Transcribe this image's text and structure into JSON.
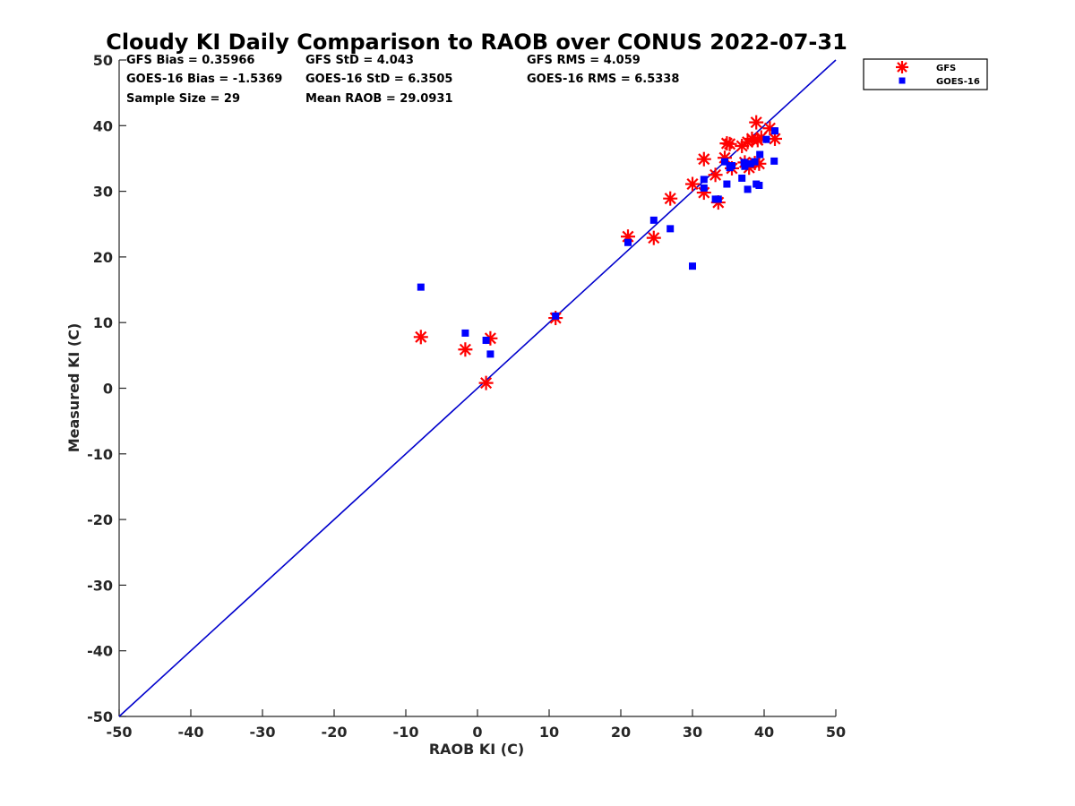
{
  "chart_data": {
    "type": "scatter",
    "title": "Cloudy KI Daily Comparison to RAOB over CONUS 2022-07-31",
    "xlabel": "RAOB KI (C)",
    "ylabel": "Measured KI (C)",
    "xlim": [
      -50,
      50
    ],
    "ylim": [
      -50,
      50
    ],
    "xticks": [
      "-50",
      "-40",
      "-30",
      "-20",
      "-10",
      "0",
      "10",
      "20",
      "30",
      "40",
      "50"
    ],
    "yticks": [
      "-50",
      "-40",
      "-30",
      "-20",
      "-10",
      "0",
      "10",
      "20",
      "30",
      "40",
      "50"
    ],
    "grid": false,
    "legend_position": "top-right",
    "reference_line": {
      "type": "one-to-one",
      "color": "#0000cc"
    },
    "stats": [
      [
        "GFS Bias = 0.35966",
        "GFS StD = 4.043",
        "GFS RMS = 4.059"
      ],
      [
        "GOES-16 Bias = -1.5369",
        "GOES-16 StD = 6.3505",
        "GOES-16 RMS = 6.5338"
      ],
      [
        "Sample Size = 29",
        "Mean RAOB = 29.0931",
        ""
      ]
    ],
    "series": [
      {
        "name": "GFS",
        "marker": "asterisk",
        "color": "#ff0000",
        "points": [
          [
            -7.9,
            7.8
          ],
          [
            -1.7,
            5.9
          ],
          [
            1.2,
            0.8
          ],
          [
            1.8,
            7.6
          ],
          [
            10.9,
            10.7
          ],
          [
            21.0,
            23.1
          ],
          [
            24.6,
            22.9
          ],
          [
            26.9,
            28.9
          ],
          [
            30.0,
            31.1
          ],
          [
            31.6,
            29.8
          ],
          [
            31.6,
            34.9
          ],
          [
            33.2,
            32.5
          ],
          [
            33.6,
            28.3
          ],
          [
            34.5,
            35.1
          ],
          [
            34.8,
            37.3
          ],
          [
            35.2,
            37.2
          ],
          [
            35.5,
            33.5
          ],
          [
            36.9,
            36.9
          ],
          [
            37.3,
            34.4
          ],
          [
            37.7,
            37.5
          ],
          [
            37.9,
            33.6
          ],
          [
            38.3,
            38.0
          ],
          [
            38.7,
            34.3
          ],
          [
            38.9,
            40.5
          ],
          [
            39.1,
            37.8
          ],
          [
            39.3,
            34.2
          ],
          [
            39.6,
            38.2
          ],
          [
            40.8,
            39.6
          ],
          [
            41.5,
            38.0
          ]
        ]
      },
      {
        "name": "GOES-16",
        "marker": "square",
        "color": "#0000ff",
        "points": [
          [
            -7.9,
            15.4
          ],
          [
            -1.7,
            8.4
          ],
          [
            1.2,
            7.3
          ],
          [
            1.8,
            5.2
          ],
          [
            10.9,
            11.0
          ],
          [
            21.0,
            22.2
          ],
          [
            24.6,
            25.6
          ],
          [
            26.9,
            24.3
          ],
          [
            30.0,
            18.6
          ],
          [
            31.6,
            30.5
          ],
          [
            31.6,
            31.8
          ],
          [
            33.2,
            28.8
          ],
          [
            33.6,
            28.8
          ],
          [
            34.5,
            34.5
          ],
          [
            34.8,
            31.1
          ],
          [
            35.2,
            33.6
          ],
          [
            35.5,
            33.9
          ],
          [
            36.9,
            32.0
          ],
          [
            37.2,
            34.4
          ],
          [
            37.3,
            33.8
          ],
          [
            37.7,
            30.3
          ],
          [
            38.1,
            34.2
          ],
          [
            38.7,
            34.5
          ],
          [
            38.9,
            31.1
          ],
          [
            39.3,
            30.9
          ],
          [
            39.4,
            35.6
          ],
          [
            40.3,
            37.9
          ],
          [
            41.4,
            34.6
          ],
          [
            41.5,
            39.2
          ]
        ]
      }
    ]
  }
}
